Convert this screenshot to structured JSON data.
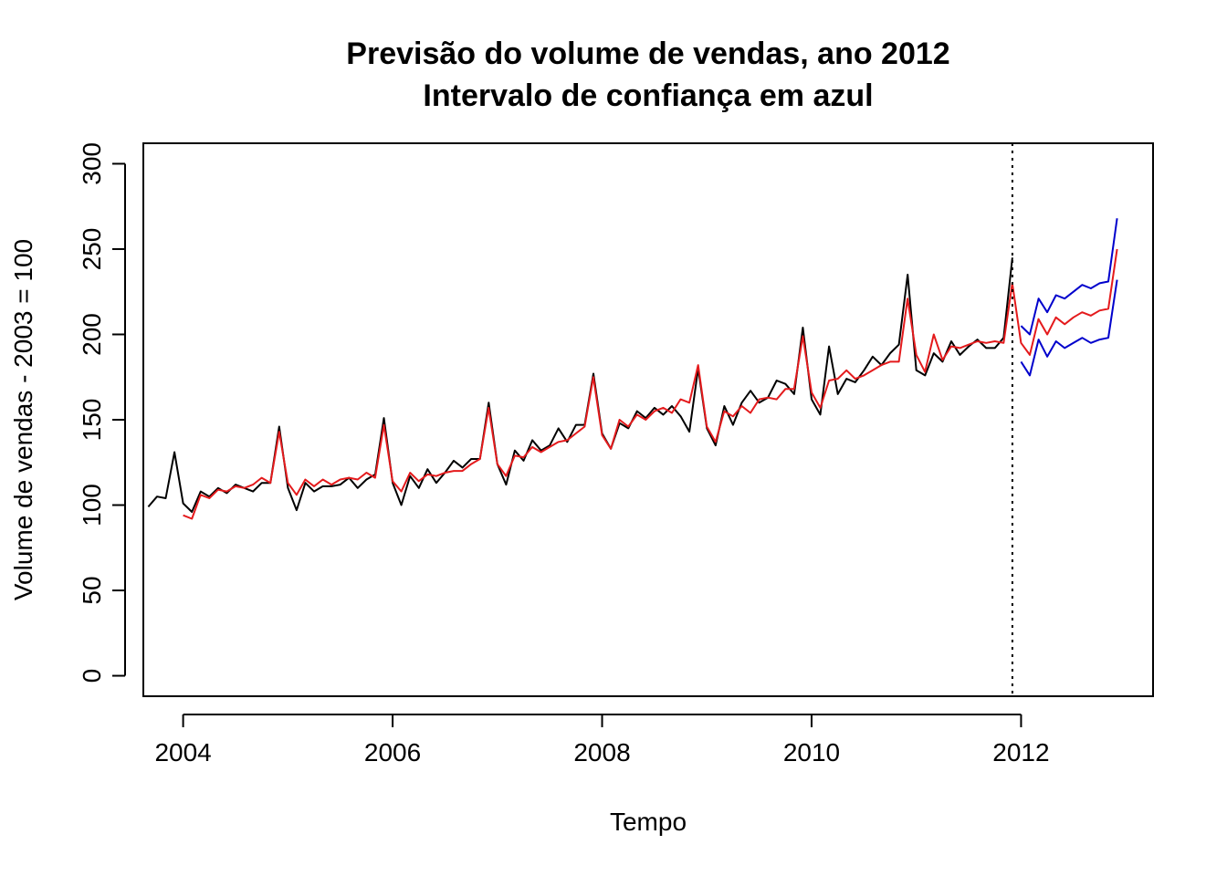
{
  "chart_data": {
    "type": "line",
    "title": "Previsão do volume de vendas, ano 2012",
    "subtitle": "Intervalo de confiança em azul",
    "xlabel": "Tempo",
    "ylabel": "Volume de vendas - 2003 = 100",
    "xlim": [
      2003.62,
      2013.26
    ],
    "ylim": [
      -12,
      312
    ],
    "x_ticks": [
      2004,
      2006,
      2008,
      2010,
      2012
    ],
    "y_ticks": [
      0,
      50,
      100,
      150,
      200,
      250,
      300
    ],
    "vertical_line": {
      "x": 2011.917,
      "style": "dotted"
    },
    "grid": false,
    "legend": "none",
    "series": [
      {
        "color": "#000000",
        "start": 2003.667,
        "step": 0.08333,
        "values": [
          99,
          105,
          104,
          131,
          101,
          96,
          108,
          105,
          110,
          107,
          112,
          110,
          108,
          113,
          113,
          146,
          110,
          97,
          113,
          108,
          111,
          111,
          112,
          116,
          110,
          115,
          118,
          151,
          113,
          100,
          117,
          110,
          121,
          113,
          119,
          126,
          122,
          127,
          127,
          160,
          124,
          112,
          132,
          126,
          138,
          132,
          135,
          145,
          137,
          147,
          147,
          177,
          142,
          133,
          148,
          145,
          155,
          151,
          157,
          153,
          158,
          152,
          143,
          180,
          145,
          135,
          158,
          147,
          160,
          167,
          160,
          163,
          173,
          171,
          165,
          204,
          162,
          153,
          193,
          165,
          174,
          172,
          179,
          187,
          182,
          189,
          194,
          235,
          179,
          176,
          189,
          184,
          196,
          188,
          193,
          197,
          192,
          192,
          198,
          245
        ]
      },
      {
        "color": "#e41a1c",
        "start": 2004.0,
        "step": 0.08333,
        "values": [
          94,
          92,
          106,
          104,
          109,
          108,
          111,
          110,
          112,
          116,
          113,
          143,
          113,
          106,
          115,
          111,
          115,
          112,
          115,
          116,
          115,
          119,
          116,
          147,
          114,
          108,
          119,
          114,
          118,
          117,
          119,
          120,
          120,
          124,
          127,
          157,
          124,
          117,
          129,
          128,
          134,
          131,
          134,
          137,
          138,
          142,
          146,
          175,
          141,
          133,
          150,
          146,
          153,
          150,
          155,
          157,
          154,
          162,
          160,
          182,
          146,
          137,
          155,
          152,
          158,
          154,
          162,
          163,
          162,
          168,
          168,
          199,
          166,
          157,
          173,
          174,
          179,
          174,
          176,
          179,
          182,
          184,
          184,
          221,
          188,
          178,
          200,
          185,
          193,
          192,
          194,
          196,
          195,
          196,
          195,
          230,
          195,
          188,
          209,
          200,
          210,
          206,
          210,
          213,
          211,
          214,
          215,
          250
        ]
      },
      {
        "color": "#0000cc",
        "start": 2012.0,
        "step": 0.08333,
        "values": [
          205,
          200,
          221,
          213,
          223,
          221,
          225,
          229,
          227,
          230,
          231,
          268
        ]
      },
      {
        "color": "#0000cc",
        "start": 2012.0,
        "step": 0.08333,
        "values": [
          184,
          176,
          197,
          187,
          196,
          192,
          195,
          198,
          195,
          197,
          198,
          232
        ]
      }
    ]
  }
}
